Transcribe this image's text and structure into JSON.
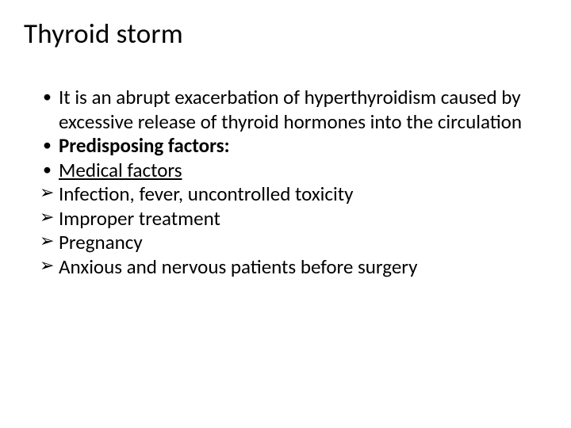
{
  "slide": {
    "title": "Thyroid storm",
    "background_color": "#ffffff",
    "text_color": "#000000",
    "title_fontsize": 35,
    "body_fontsize": 25,
    "font_family": "Calibri",
    "bullets": [
      {
        "marker": "dot",
        "text": "It is an abrupt exacerbation of hyperthyroidism caused by excessive release of thyroid hormones into the circulation",
        "bold": false,
        "underline": false
      },
      {
        "marker": "dot",
        "text": "Predisposing factors:",
        "bold": true,
        "underline": false
      },
      {
        "marker": "dot",
        "text": "Medical factors",
        "bold": false,
        "underline": true
      },
      {
        "marker": "arrow",
        "text": "Infection, fever, uncontrolled toxicity",
        "bold": false,
        "underline": false
      },
      {
        "marker": "arrow",
        "text": "Improper treatment",
        "bold": false,
        "underline": false
      },
      {
        "marker": "arrow",
        "text": "Pregnancy",
        "bold": false,
        "underline": false
      },
      {
        "marker": "arrow",
        "text": "Anxious and nervous patients before surgery",
        "bold": false,
        "underline": false
      }
    ],
    "markers": {
      "dot": "•",
      "arrow": "➢"
    }
  }
}
